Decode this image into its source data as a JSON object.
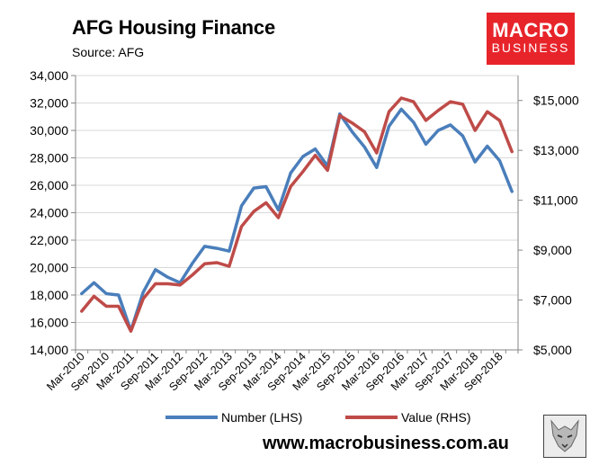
{
  "header": {
    "title": "AFG Housing Finance",
    "source": "Source: AFG"
  },
  "logo": {
    "line1": "MACRO",
    "line2": "BUSINESS"
  },
  "footer": {
    "url": "www.macrobusiness.com.au"
  },
  "colors": {
    "number": "#4a7ebb",
    "value": "#be4b48",
    "logo_bg": "#e8242b"
  },
  "chart_data": {
    "type": "line",
    "title": "AFG Housing Finance",
    "x_tick_labels": [
      "Mar-2010",
      "Sep-2010",
      "Mar-2011",
      "Sep-2011",
      "Mar-2012",
      "Sep-2012",
      "Mar-2013",
      "Sep-2013",
      "Mar-2014",
      "Sep-2014",
      "Mar-2015",
      "Sep-2015",
      "Mar-2016",
      "Sep-2016",
      "Mar-2017",
      "Sep-2017",
      "Mar-2018",
      "Sep-2018"
    ],
    "x": [
      "Mar-2010",
      "Jun-2010",
      "Sep-2010",
      "Dec-2010",
      "Mar-2011",
      "Jun-2011",
      "Sep-2011",
      "Dec-2011",
      "Mar-2012",
      "Jun-2012",
      "Sep-2012",
      "Dec-2012",
      "Mar-2013",
      "Jun-2013",
      "Sep-2013",
      "Dec-2013",
      "Mar-2014",
      "Jun-2014",
      "Sep-2014",
      "Dec-2014",
      "Mar-2015",
      "Jun-2015",
      "Sep-2015",
      "Dec-2015",
      "Mar-2016",
      "Jun-2016",
      "Sep-2016",
      "Dec-2016",
      "Mar-2017",
      "Jun-2017",
      "Sep-2017",
      "Dec-2017",
      "Mar-2018",
      "Jun-2018",
      "Sep-2018",
      "Dec-2018"
    ],
    "series": [
      {
        "name": "Number (LHS)",
        "axis": "left",
        "color": "#4a7ebb",
        "values": [
          18100,
          18900,
          18100,
          18000,
          15400,
          18200,
          19850,
          19300,
          18900,
          20300,
          21550,
          21400,
          21200,
          24500,
          25800,
          25900,
          24200,
          26900,
          28100,
          28650,
          27400,
          31200,
          29900,
          28800,
          27300,
          30300,
          31550,
          30600,
          29000,
          30000,
          30400,
          29600,
          27700,
          28850,
          27800,
          25550
        ]
      },
      {
        "name": "Value (RHS)",
        "axis": "right",
        "color": "#be4b48",
        "values": [
          6550,
          7150,
          6750,
          6750,
          5750,
          7050,
          7650,
          7650,
          7600,
          8000,
          8450,
          8500,
          8350,
          9950,
          10550,
          10900,
          10300,
          11550,
          12150,
          12800,
          12200,
          14400,
          14100,
          13750,
          12900,
          14550,
          15100,
          14950,
          14200,
          14600,
          14950,
          14850,
          13800,
          14550,
          14200,
          12950
        ]
      }
    ],
    "y_left": {
      "min": 14000,
      "max": 34000,
      "step": 2000,
      "tick_labels": [
        "14,000",
        "16,000",
        "18,000",
        "20,000",
        "22,000",
        "24,000",
        "26,000",
        "28,000",
        "30,000",
        "32,000",
        "34,000"
      ]
    },
    "y_right": {
      "min": 5000,
      "max": 16000,
      "ticks": [
        5000,
        7000,
        9000,
        11000,
        13000,
        15000
      ],
      "tick_labels": [
        "$5,000",
        "$7,000",
        "$9,000",
        "$11,000",
        "$13,000",
        "$15,000"
      ]
    },
    "grid": "horizontal",
    "legend": "bottom"
  }
}
